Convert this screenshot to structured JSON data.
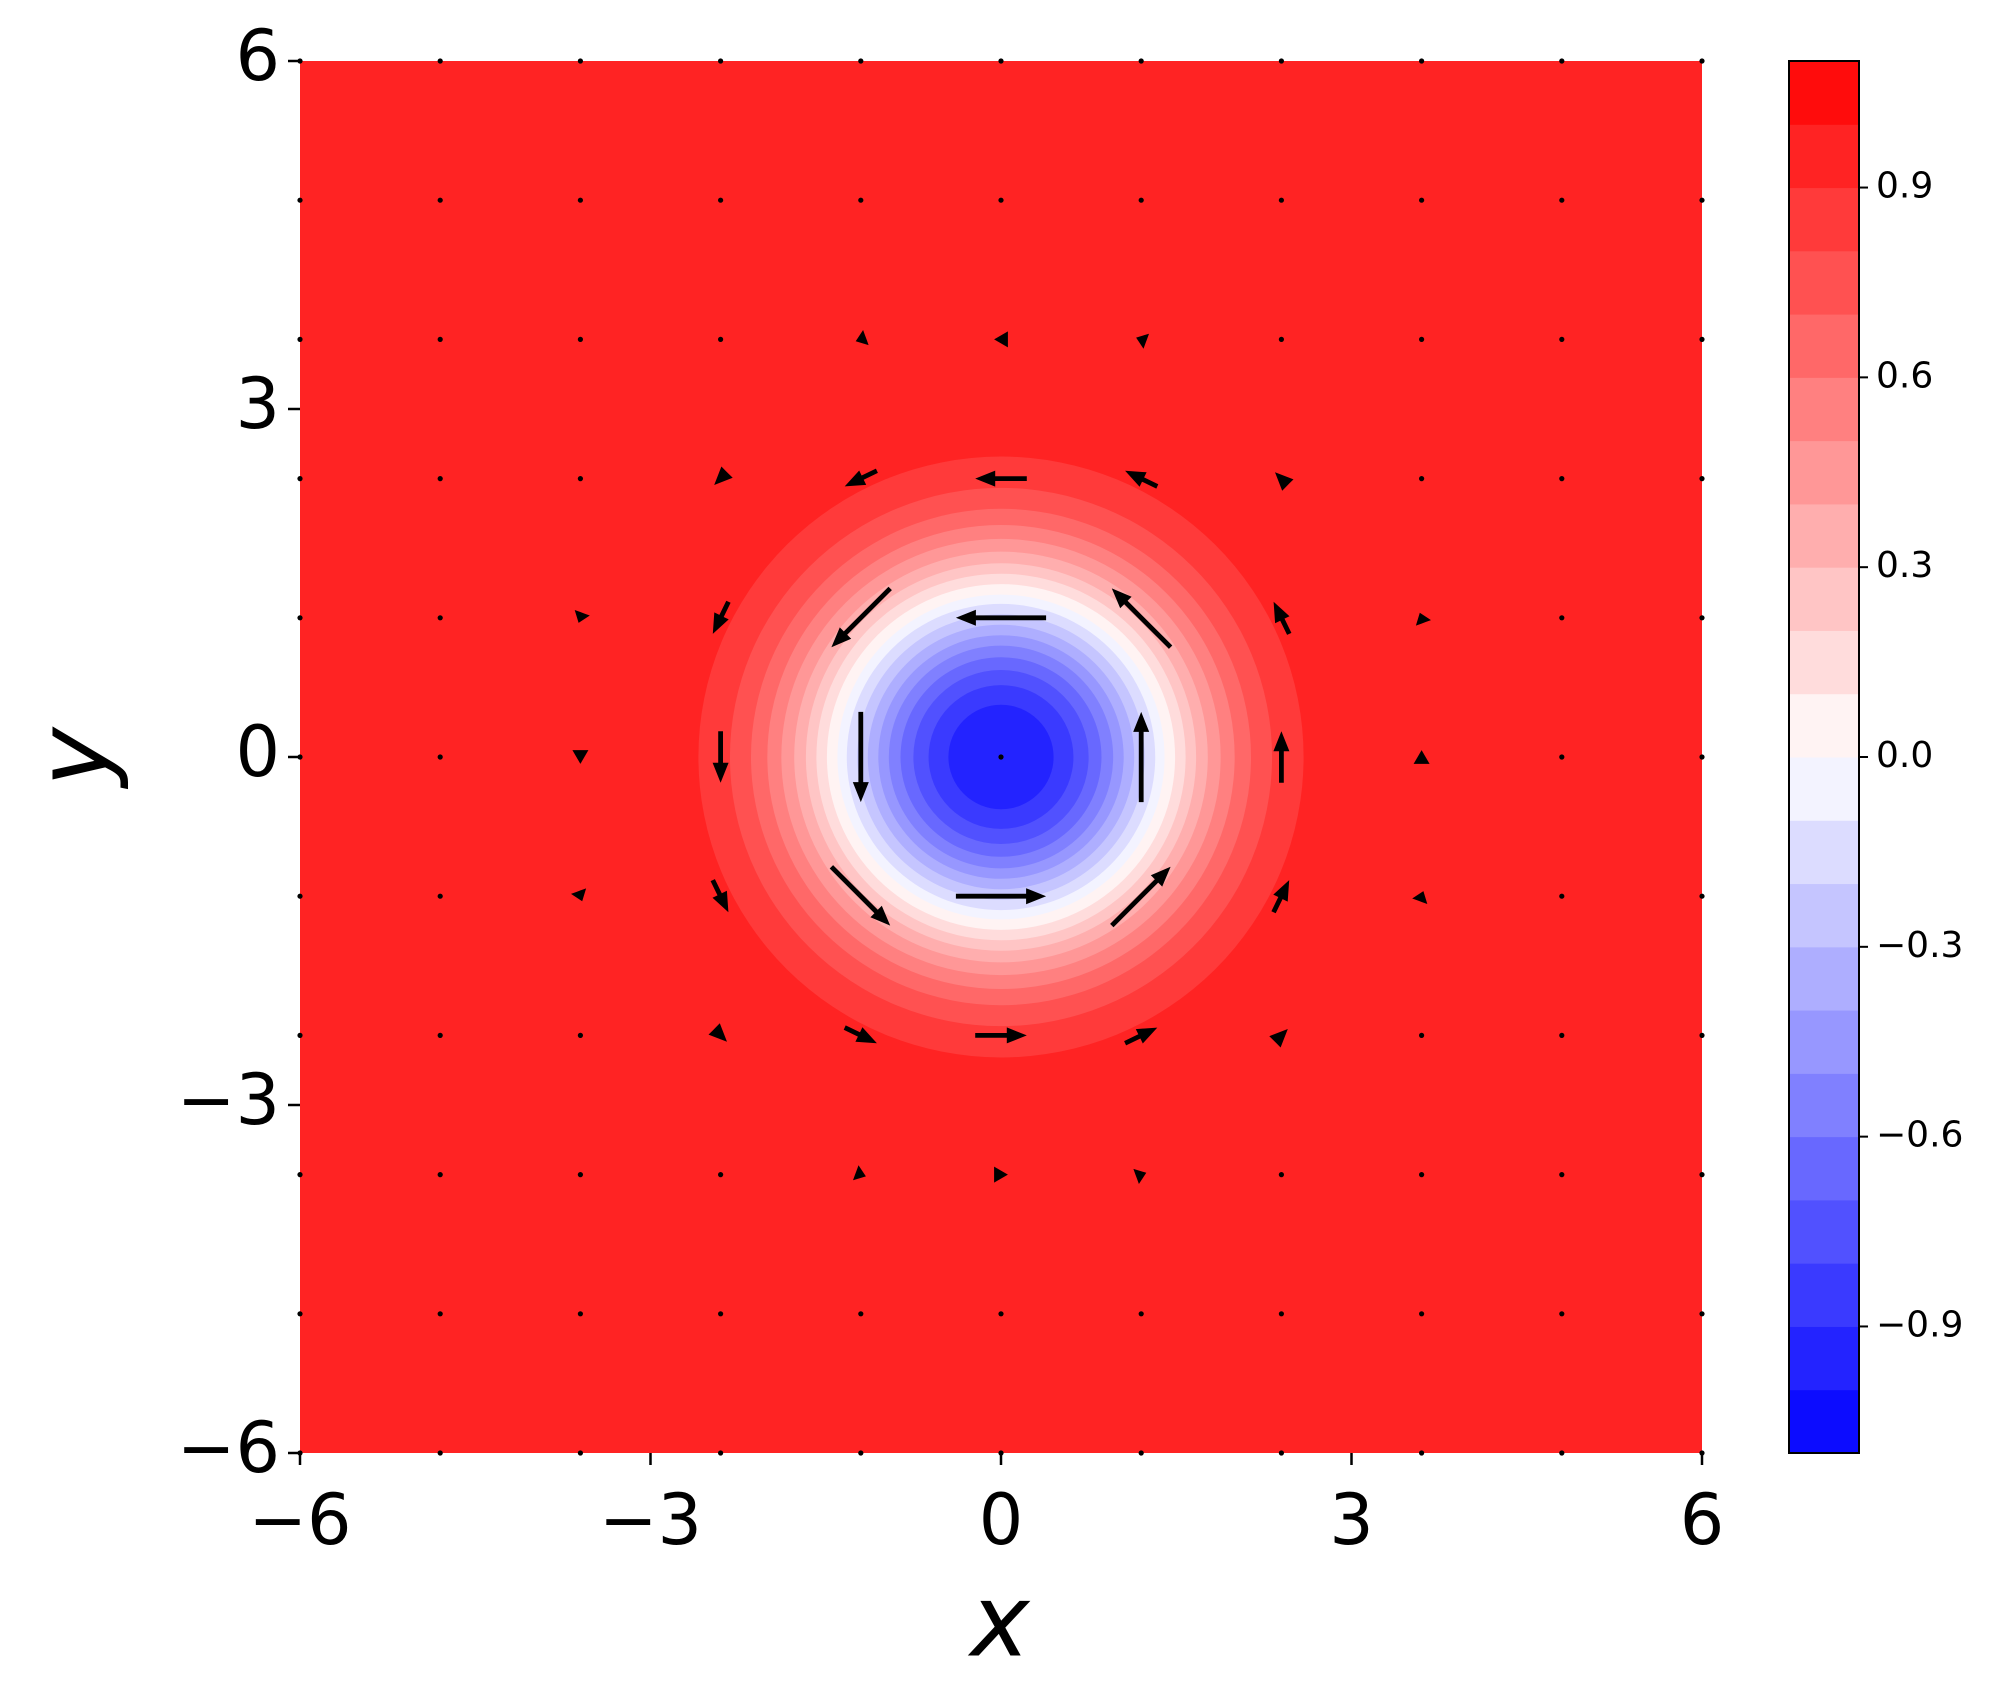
{
  "chart_data": {
    "type": "contour",
    "xlabel": "x",
    "ylabel": "y",
    "xlim": [
      -6,
      6
    ],
    "ylim": [
      -6,
      6
    ],
    "xticks": [
      {
        "value": -6,
        "label": "−6"
      },
      {
        "value": -3,
        "label": "−3"
      },
      0,
      3,
      6
    ],
    "yticks": [
      {
        "value": -6,
        "label": "−6"
      },
      {
        "value": -3,
        "label": "−3"
      },
      0,
      3,
      6
    ],
    "colormap": "bwr",
    "contour": {
      "levels": [
        -1.1,
        -1.0,
        -0.9,
        -0.8,
        -0.7,
        -0.6,
        -0.5,
        -0.4,
        -0.3,
        -0.2,
        -0.1,
        0.0,
        0.1,
        0.2,
        0.3,
        0.4,
        0.5,
        0.6,
        0.7,
        0.8,
        0.9,
        1.0,
        1.1
      ],
      "radii": [
        null,
        null,
        0.45,
        0.62,
        0.75,
        0.86,
        0.96,
        1.05,
        1.14,
        1.23,
        1.32,
        1.4,
        1.49,
        1.58,
        1.67,
        1.77,
        1.88,
        2.0,
        2.14,
        2.32,
        2.59,
        null,
        null
      ]
    },
    "colorbar_ticks": [
      {
        "value": -0.9,
        "label": "−0.9"
      },
      {
        "value": -0.6,
        "label": "−0.6"
      },
      {
        "value": -0.3,
        "label": "−0.3"
      },
      {
        "value": 0.0,
        "label": "0.0"
      },
      {
        "value": 0.3,
        "label": "0.3"
      },
      {
        "value": 0.6,
        "label": "0.6"
      },
      {
        "value": 0.9,
        "label": "0.9"
      }
    ],
    "quiver": {
      "color": "#000000",
      "x": [
        -6,
        -4.8,
        -3.6,
        -2.4,
        -1.2,
        0,
        1.2,
        2.4,
        3.6,
        4.8,
        6
      ],
      "y": [
        -6,
        -4.8,
        -3.6,
        -2.4,
        -1.2,
        0,
        1.2,
        2.4,
        3.6,
        4.8,
        6
      ],
      "u": [
        [
          0,
          0,
          0,
          0,
          0,
          0,
          0,
          0,
          0,
          0,
          0
        ],
        [
          0,
          0,
          0,
          0,
          0,
          0,
          0,
          0,
          0,
          0,
          0
        ],
        [
          0,
          0,
          0,
          0,
          0.11,
          0.15,
          0.11,
          0,
          0,
          0,
          0
        ],
        [
          0,
          0,
          0,
          0.14,
          0.35,
          0.56,
          0.35,
          0.14,
          0,
          0,
          0
        ],
        [
          0,
          0,
          0.04,
          0.17,
          0.64,
          0.98,
          0.64,
          0.17,
          0.04,
          0,
          0
        ],
        [
          0,
          0,
          0,
          0,
          0,
          0,
          0,
          0,
          0,
          0,
          0
        ],
        [
          0,
          0,
          -0.04,
          -0.17,
          -0.64,
          -0.98,
          -0.64,
          -0.17,
          -0.04,
          0,
          0
        ],
        [
          0,
          0,
          0,
          -0.14,
          -0.35,
          -0.56,
          -0.35,
          -0.14,
          0,
          0,
          0
        ],
        [
          0,
          0,
          0,
          0,
          -0.11,
          -0.15,
          -0.11,
          0,
          0,
          0,
          0
        ],
        [
          0,
          0,
          0,
          0,
          0,
          0,
          0,
          0,
          0,
          0,
          0
        ],
        [
          0,
          0,
          0,
          0,
          0,
          0,
          0,
          0,
          0,
          0,
          0
        ]
      ],
      "v": [
        [
          0,
          0,
          0,
          0,
          0,
          0,
          0,
          0,
          0,
          0,
          0
        ],
        [
          0,
          0,
          0,
          0,
          0,
          0,
          0,
          0,
          0,
          0,
          0
        ],
        [
          0,
          0,
          0,
          0,
          -0.04,
          0,
          0.04,
          0,
          0,
          0,
          0
        ],
        [
          0,
          0,
          0,
          -0.14,
          -0.17,
          0,
          0.17,
          0.14,
          0,
          0,
          0
        ],
        [
          0,
          0,
          -0.11,
          -0.35,
          -0.64,
          0,
          0.64,
          0.35,
          0.11,
          0,
          0
        ],
        [
          0,
          0,
          -0.15,
          -0.56,
          -0.98,
          0,
          0.98,
          0.56,
          0.15,
          0,
          0
        ],
        [
          0,
          0,
          -0.11,
          -0.35,
          -0.64,
          0,
          0.64,
          0.35,
          0.11,
          0,
          0
        ],
        [
          0,
          0,
          0,
          -0.14,
          -0.17,
          0,
          0.17,
          0.14,
          0,
          0,
          0
        ],
        [
          0,
          0,
          0,
          0,
          -0.04,
          0,
          0.04,
          0,
          0,
          0,
          0
        ],
        [
          0,
          0,
          0,
          0,
          0,
          0,
          0,
          0,
          0,
          0,
          0
        ],
        [
          0,
          0,
          0,
          0,
          0,
          0,
          0,
          0,
          0,
          0,
          0
        ]
      ]
    }
  }
}
